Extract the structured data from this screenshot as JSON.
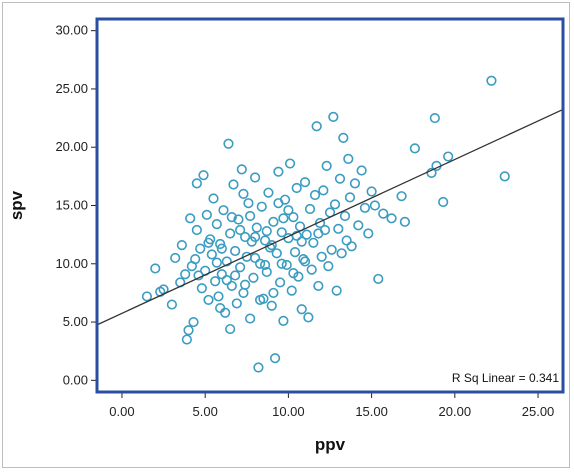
{
  "colors": {
    "plot_border": "#2a4fa0",
    "marker": "#3a9cc0",
    "fit_line": "#333333",
    "text": "#222222"
  },
  "chart_data": {
    "type": "scatter",
    "xlabel": "ppv",
    "ylabel": "spv",
    "xlim": [
      -1.5,
      26.5
    ],
    "ylim": [
      -1.0,
      31.0
    ],
    "x_ticks": [
      0,
      5,
      10,
      15,
      20,
      25
    ],
    "y_ticks": [
      0,
      5,
      10,
      15,
      20,
      25,
      30
    ],
    "x_tick_labels": [
      "0.00",
      "5.00",
      "10.00",
      "15.00",
      "20.00",
      "25.00"
    ],
    "y_tick_labels": [
      "0.00",
      "5.00",
      "10.00",
      "15.00",
      "20.00",
      "25.00",
      "30.00"
    ],
    "grid": false,
    "legend": "none",
    "fit_line": {
      "intercept": 5.75,
      "slope": 0.66
    },
    "annotation": "R Sq Linear = 0.341",
    "points": [
      [
        2.0,
        9.6
      ],
      [
        2.3,
        7.6
      ],
      [
        2.5,
        7.8
      ],
      [
        1.5,
        7.2
      ],
      [
        3.2,
        10.5
      ],
      [
        3.0,
        6.5
      ],
      [
        3.5,
        8.4
      ],
      [
        3.6,
        11.6
      ],
      [
        3.8,
        9.1
      ],
      [
        3.9,
        3.5
      ],
      [
        4.0,
        4.3
      ],
      [
        4.1,
        13.9
      ],
      [
        4.2,
        9.8
      ],
      [
        4.3,
        5.0
      ],
      [
        4.4,
        10.4
      ],
      [
        4.5,
        12.9
      ],
      [
        4.5,
        16.9
      ],
      [
        4.7,
        11.3
      ],
      [
        4.8,
        7.9
      ],
      [
        4.9,
        17.6
      ],
      [
        5.0,
        9.4
      ],
      [
        5.1,
        14.2
      ],
      [
        5.2,
        6.9
      ],
      [
        5.3,
        12.1
      ],
      [
        5.4,
        10.8
      ],
      [
        5.5,
        15.6
      ],
      [
        5.6,
        8.5
      ],
      [
        5.7,
        13.4
      ],
      [
        5.8,
        7.2
      ],
      [
        5.9,
        11.7
      ],
      [
        6.0,
        9.1
      ],
      [
        6.1,
        14.6
      ],
      [
        6.2,
        5.8
      ],
      [
        6.3,
        10.2
      ],
      [
        6.4,
        20.3
      ],
      [
        6.5,
        12.6
      ],
      [
        6.5,
        4.4
      ],
      [
        6.6,
        8.1
      ],
      [
        6.7,
        16.8
      ],
      [
        6.8,
        11.1
      ],
      [
        6.9,
        6.6
      ],
      [
        7.0,
        13.8
      ],
      [
        7.1,
        9.7
      ],
      [
        7.2,
        18.1
      ],
      [
        7.3,
        7.5
      ],
      [
        7.4,
        12.3
      ],
      [
        7.5,
        10.6
      ],
      [
        7.6,
        15.2
      ],
      [
        7.7,
        5.3
      ],
      [
        7.8,
        11.9
      ],
      [
        7.9,
        8.8
      ],
      [
        8.0,
        17.4
      ],
      [
        8.1,
        13.1
      ],
      [
        8.2,
        1.1
      ],
      [
        8.3,
        10.0
      ],
      [
        8.4,
        14.9
      ],
      [
        8.5,
        7.0
      ],
      [
        8.6,
        12.0
      ],
      [
        8.7,
        9.3
      ],
      [
        8.8,
        16.1
      ],
      [
        8.9,
        11.4
      ],
      [
        9.0,
        6.4
      ],
      [
        9.1,
        13.6
      ],
      [
        9.2,
        1.9
      ],
      [
        9.3,
        10.9
      ],
      [
        9.4,
        17.9
      ],
      [
        9.5,
        8.4
      ],
      [
        9.6,
        12.7
      ],
      [
        9.7,
        5.1
      ],
      [
        9.8,
        15.5
      ],
      [
        9.9,
        9.9
      ],
      [
        10.0,
        12.2
      ],
      [
        10.1,
        18.6
      ],
      [
        10.2,
        7.7
      ],
      [
        10.3,
        14.0
      ],
      [
        10.4,
        11.0
      ],
      [
        10.5,
        16.5
      ],
      [
        10.6,
        8.9
      ],
      [
        10.7,
        13.2
      ],
      [
        10.8,
        6.1
      ],
      [
        10.9,
        10.4
      ],
      [
        11.0,
        17.0
      ],
      [
        11.1,
        12.5
      ],
      [
        11.2,
        5.4
      ],
      [
        11.3,
        14.7
      ],
      [
        11.4,
        9.5
      ],
      [
        11.5,
        11.8
      ],
      [
        11.6,
        15.9
      ],
      [
        11.7,
        21.8
      ],
      [
        11.8,
        8.1
      ],
      [
        11.9,
        13.5
      ],
      [
        12.0,
        10.6
      ],
      [
        12.1,
        16.3
      ],
      [
        12.2,
        12.9
      ],
      [
        12.3,
        18.4
      ],
      [
        12.4,
        9.8
      ],
      [
        12.5,
        14.4
      ],
      [
        12.6,
        11.2
      ],
      [
        12.7,
        22.6
      ],
      [
        12.8,
        15.1
      ],
      [
        12.9,
        7.7
      ],
      [
        13.0,
        13.0
      ],
      [
        13.1,
        17.3
      ],
      [
        13.2,
        10.9
      ],
      [
        13.3,
        20.8
      ],
      [
        13.4,
        14.1
      ],
      [
        13.5,
        12.0
      ],
      [
        13.6,
        19.0
      ],
      [
        13.7,
        15.7
      ],
      [
        13.8,
        11.5
      ],
      [
        14.0,
        16.9
      ],
      [
        14.2,
        13.3
      ],
      [
        14.4,
        18.0
      ],
      [
        14.6,
        14.8
      ],
      [
        14.8,
        12.6
      ],
      [
        15.0,
        16.2
      ],
      [
        15.2,
        15.0
      ],
      [
        15.4,
        8.7
      ],
      [
        15.7,
        14.3
      ],
      [
        16.2,
        13.9
      ],
      [
        16.8,
        15.8
      ],
      [
        17.0,
        13.6
      ],
      [
        17.6,
        19.9
      ],
      [
        18.6,
        17.8
      ],
      [
        18.8,
        22.5
      ],
      [
        18.9,
        18.4
      ],
      [
        19.3,
        15.3
      ],
      [
        19.6,
        19.2
      ],
      [
        22.2,
        25.7
      ],
      [
        23.0,
        17.5
      ],
      [
        6.0,
        11.3
      ],
      [
        6.8,
        9.0
      ],
      [
        7.4,
        8.2
      ],
      [
        8.0,
        10.5
      ],
      [
        8.7,
        12.8
      ],
      [
        9.1,
        7.5
      ],
      [
        9.7,
        13.9
      ],
      [
        10.3,
        9.2
      ],
      [
        5.7,
        10.1
      ],
      [
        6.3,
        8.6
      ],
      [
        7.1,
        12.9
      ],
      [
        7.7,
        14.1
      ],
      [
        8.3,
        6.9
      ],
      [
        9.0,
        11.6
      ],
      [
        9.6,
        10.0
      ],
      [
        10.5,
        12.4
      ],
      [
        11.0,
        10.2
      ],
      [
        11.8,
        12.6
      ],
      [
        4.6,
        9.0
      ],
      [
        5.2,
        11.8
      ],
      [
        5.9,
        6.2
      ],
      [
        6.6,
        14.0
      ],
      [
        7.3,
        16.0
      ],
      [
        8.0,
        12.3
      ],
      [
        8.6,
        9.9
      ],
      [
        9.4,
        15.2
      ],
      [
        10.0,
        14.6
      ],
      [
        10.8,
        11.9
      ]
    ]
  }
}
